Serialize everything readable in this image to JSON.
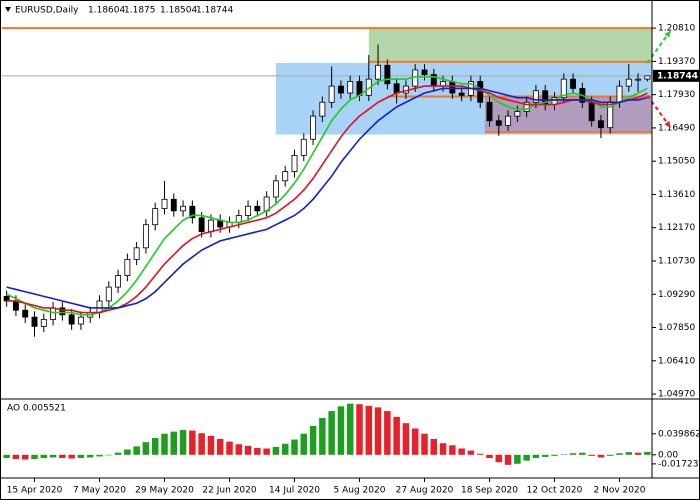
{
  "chart_data": [
    {
      "type": "candlestick",
      "title": "EURUSD,Daily",
      "categories": [
        null,
        null,
        null,
        "15 Apr 2020",
        null,
        null,
        null,
        null,
        null,
        null,
        "7 May 2020",
        null,
        null,
        null,
        null,
        null,
        null,
        "29 May 2020",
        null,
        null,
        null,
        null,
        null,
        null,
        "22 Jun 2020",
        null,
        null,
        null,
        null,
        null,
        null,
        "14 Jul 2020",
        null,
        null,
        null,
        null,
        null,
        null,
        "5 Aug 2020",
        null,
        null,
        null,
        null,
        null,
        null,
        "27 Aug 2020",
        null,
        null,
        null,
        null,
        null,
        null,
        "18 Sep 2020",
        null,
        null,
        null,
        null,
        null,
        null,
        "12 Oct 2020",
        null,
        null,
        null,
        null,
        null,
        null,
        "2 Nov 2020",
        null,
        null,
        null
      ],
      "candles": [
        [
          1.092,
          1.0945,
          1.0875,
          1.09
        ],
        [
          1.09,
          1.0925,
          1.0835,
          1.086
        ],
        [
          1.086,
          1.0885,
          1.0805,
          1.083
        ],
        [
          1.083,
          1.0855,
          1.0745,
          1.079
        ],
        [
          1.079,
          1.0845,
          1.0765,
          1.082
        ],
        [
          1.082,
          1.0895,
          1.0795,
          1.087
        ],
        [
          1.087,
          1.0895,
          1.0815,
          1.084
        ],
        [
          1.084,
          1.0865,
          1.0775,
          1.08
        ],
        [
          1.08,
          1.0855,
          1.0775,
          1.083
        ],
        [
          1.083,
          1.0875,
          1.0805,
          1.085
        ],
        [
          1.085,
          1.0925,
          1.0825,
          1.09
        ],
        [
          1.09,
          1.0985,
          1.0875,
          1.096
        ],
        [
          1.096,
          1.1035,
          1.0935,
          1.101
        ],
        [
          1.101,
          1.1105,
          1.0985,
          1.108
        ],
        [
          1.108,
          1.1155,
          1.1055,
          1.113
        ],
        [
          1.113,
          1.1255,
          1.1105,
          1.123
        ],
        [
          1.123,
          1.1325,
          1.1205,
          1.13
        ],
        [
          1.13,
          1.142,
          1.1275,
          1.134
        ],
        [
          1.134,
          1.1365,
          1.1265,
          1.129
        ],
        [
          1.129,
          1.1335,
          1.1265,
          1.131
        ],
        [
          1.131,
          1.1335,
          1.1235,
          1.126
        ],
        [
          1.126,
          1.1285,
          1.1175,
          1.12
        ],
        [
          1.12,
          1.1275,
          1.1175,
          1.125
        ],
        [
          1.125,
          1.1275,
          1.1195,
          1.122
        ],
        [
          1.122,
          1.1265,
          1.1195,
          1.124
        ],
        [
          1.124,
          1.1295,
          1.1215,
          1.127
        ],
        [
          1.127,
          1.1335,
          1.1245,
          1.131
        ],
        [
          1.131,
          1.1335,
          1.1265,
          1.129
        ],
        [
          1.129,
          1.1375,
          1.1265,
          1.135
        ],
        [
          1.135,
          1.1445,
          1.1325,
          1.142
        ],
        [
          1.142,
          1.1485,
          1.1395,
          1.146
        ],
        [
          1.146,
          1.1555,
          1.1435,
          1.153
        ],
        [
          1.153,
          1.1625,
          1.1505,
          1.16
        ],
        [
          1.16,
          1.1725,
          1.1575,
          1.17
        ],
        [
          1.17,
          1.1785,
          1.1675,
          1.176
        ],
        [
          1.176,
          1.1915,
          1.1735,
          1.183
        ],
        [
          1.183,
          1.1855,
          1.1775,
          1.18
        ],
        [
          1.18,
          1.1875,
          1.1775,
          1.185
        ],
        [
          1.185,
          1.1875,
          1.1765,
          1.179
        ],
        [
          1.179,
          1.1965,
          1.1765,
          1.186
        ],
        [
          1.186,
          1.201,
          1.1835,
          1.192
        ],
        [
          1.192,
          1.1945,
          1.1815,
          1.184
        ],
        [
          1.184,
          1.1865,
          1.1755,
          1.18
        ],
        [
          1.18,
          1.1855,
          1.1775,
          1.183
        ],
        [
          1.183,
          1.1925,
          1.1805,
          1.19
        ],
        [
          1.19,
          1.1925,
          1.1855,
          1.188
        ],
        [
          1.188,
          1.1905,
          1.1805,
          1.183
        ],
        [
          1.183,
          1.1875,
          1.1805,
          1.185
        ],
        [
          1.185,
          1.1875,
          1.1775,
          1.18
        ],
        [
          1.18,
          1.1825,
          1.1765,
          1.179
        ],
        [
          1.179,
          1.1875,
          1.1765,
          1.185
        ],
        [
          1.185,
          1.1875,
          1.1735,
          1.176
        ],
        [
          1.176,
          1.1785,
          1.1655,
          1.168
        ],
        [
          1.168,
          1.1705,
          1.1615,
          1.166
        ],
        [
          1.166,
          1.1725,
          1.1635,
          1.17
        ],
        [
          1.17,
          1.1745,
          1.1675,
          1.172
        ],
        [
          1.172,
          1.1785,
          1.1695,
          1.176
        ],
        [
          1.176,
          1.1835,
          1.1735,
          1.181
        ],
        [
          1.181,
          1.1835,
          1.1725,
          1.175
        ],
        [
          1.175,
          1.1805,
          1.1725,
          1.178
        ],
        [
          1.178,
          1.1885,
          1.1755,
          1.186
        ],
        [
          1.186,
          1.1885,
          1.1795,
          1.182
        ],
        [
          1.182,
          1.1845,
          1.1735,
          1.176
        ],
        [
          1.176,
          1.1785,
          1.1655,
          1.168
        ],
        [
          1.168,
          1.1705,
          1.1605,
          1.165
        ],
        [
          1.165,
          1.1785,
          1.1625,
          1.176
        ],
        [
          1.176,
          1.1855,
          1.1735,
          1.183
        ],
        [
          1.183,
          1.1925,
          1.1805,
          1.186
        ],
        [
          1.186,
          1.1885,
          1.1805,
          1.186
        ],
        [
          1.18604,
          1.1875,
          1.18504,
          1.18744
        ]
      ],
      "series": [
        {
          "color": "#1fcc1f",
          "values": [
            1.093,
            1.091,
            1.089,
            1.087,
            1.086,
            1.085,
            1.085,
            1.085,
            1.084,
            1.084,
            1.085,
            1.087,
            1.09,
            1.094,
            1.099,
            1.105,
            1.111,
            1.117,
            1.121,
            1.125,
            1.127,
            1.127,
            1.126,
            1.125,
            1.124,
            1.124,
            1.125,
            1.127,
            1.129,
            1.132,
            1.136,
            1.141,
            1.147,
            1.154,
            1.161,
            1.168,
            1.173,
            1.177,
            1.179,
            1.182,
            1.185,
            1.186,
            1.186,
            1.186,
            1.187,
            1.187,
            1.187,
            1.186,
            1.185,
            1.184,
            1.184,
            1.182,
            1.179,
            1.176,
            1.174,
            1.173,
            1.173,
            1.175,
            1.176,
            1.177,
            1.179,
            1.18,
            1.179,
            1.177,
            1.174,
            1.174,
            1.176,
            1.178,
            1.18,
            1.182
          ]
        },
        {
          "color": "#e01020",
          "values": [
            1.09,
            1.09,
            1.089,
            1.088,
            1.087,
            1.087,
            1.086,
            1.086,
            1.085,
            1.085,
            1.085,
            1.086,
            1.087,
            1.089,
            1.092,
            1.096,
            1.101,
            1.106,
            1.11,
            1.114,
            1.117,
            1.119,
            1.12,
            1.121,
            1.122,
            1.123,
            1.124,
            1.125,
            1.126,
            1.128,
            1.131,
            1.134,
            1.138,
            1.143,
            1.149,
            1.155,
            1.161,
            1.166,
            1.17,
            1.173,
            1.176,
            1.178,
            1.18,
            1.181,
            1.182,
            1.183,
            1.183,
            1.183,
            1.183,
            1.183,
            1.182,
            1.181,
            1.18,
            1.178,
            1.177,
            1.176,
            1.175,
            1.175,
            1.175,
            1.175,
            1.176,
            1.177,
            1.177,
            1.176,
            1.175,
            1.175,
            1.176,
            1.177,
            1.178,
            1.18
          ]
        },
        {
          "color": "#1020d0",
          "values": [
            1.096,
            1.095,
            1.094,
            1.093,
            1.092,
            1.091,
            1.09,
            1.089,
            1.088,
            1.087,
            1.087,
            1.087,
            1.087,
            1.088,
            1.089,
            1.091,
            1.094,
            1.098,
            1.102,
            1.106,
            1.109,
            1.112,
            1.114,
            1.116,
            1.117,
            1.118,
            1.119,
            1.12,
            1.121,
            1.123,
            1.125,
            1.127,
            1.13,
            1.134,
            1.139,
            1.144,
            1.15,
            1.155,
            1.16,
            1.164,
            1.168,
            1.171,
            1.174,
            1.176,
            1.178,
            1.18,
            1.181,
            1.182,
            1.182,
            1.182,
            1.182,
            1.182,
            1.181,
            1.18,
            1.179,
            1.178,
            1.178,
            1.177,
            1.177,
            1.177,
            1.177,
            1.177,
            1.177,
            1.177,
            1.176,
            1.176,
            1.176,
            1.177,
            1.177,
            1.178
          ]
        }
      ],
      "ylim": [
        1.048,
        1.2194
      ],
      "yticks": [
        {
          "value": 1.2081,
          "label": "1.20810"
        },
        {
          "value": 1.1937,
          "label": "1.19370"
        },
        {
          "value": 1.1793,
          "label": "1.17930"
        },
        {
          "value": 1.1649,
          "label": "1.16490"
        },
        {
          "value": 1.1505,
          "label": "1.15050"
        },
        {
          "value": 1.1361,
          "label": "1.13610"
        },
        {
          "value": 1.1217,
          "label": "1.12170"
        },
        {
          "value": 1.1073,
          "label": "1.10730"
        },
        {
          "value": 1.0929,
          "label": "1.09290"
        },
        {
          "value": 1.0785,
          "label": "1.07850"
        },
        {
          "value": 1.0641,
          "label": "1.06410"
        },
        {
          "value": 1.0497,
          "label": "1.04970"
        }
      ],
      "zones": [
        {
          "start": 29,
          "ylim": [
            1.162,
            1.193
          ],
          "color": "#a8d2f6"
        },
        {
          "start": 39,
          "ylim": [
            1.1935,
            1.2081
          ],
          "color": "#b3d6ab"
        },
        {
          "start": 51.5,
          "ylim": [
            1.163,
            1.1785
          ],
          "color": "rgba(190,90,120,0.45)"
        }
      ],
      "levels": [
        {
          "start": 0,
          "value": 1.2081
        },
        {
          "start": 39,
          "value": 1.1935
        },
        {
          "start": 41,
          "value": 1.1785
        },
        {
          "start": 51.5,
          "value": 1.163
        }
      ],
      "level_color": "#f07820",
      "arrows": [
        {
          "from": [
            69,
            1.193
          ],
          "to": [
            71.5,
            1.207
          ],
          "color": "#2ecc2e"
        },
        {
          "from": [
            69,
            1.179
          ],
          "to": [
            71.5,
            1.165
          ],
          "color": "#e8202a"
        }
      ]
    },
    {
      "type": "histogram-ao",
      "title": "AO 0.005521",
      "values": [
        -0.006,
        -0.008,
        -0.009,
        -0.008,
        -0.006,
        -0.005,
        -0.006,
        -0.007,
        -0.006,
        -0.005,
        -0.003,
        0.0,
        0.004,
        0.01,
        0.016,
        0.024,
        0.032,
        0.04,
        0.044,
        0.047,
        0.046,
        0.041,
        0.036,
        0.03,
        0.025,
        0.02,
        0.017,
        0.013,
        0.012,
        0.015,
        0.021,
        0.029,
        0.04,
        0.055,
        0.07,
        0.083,
        0.092,
        0.097,
        0.096,
        0.093,
        0.09,
        0.083,
        0.072,
        0.06,
        0.05,
        0.04,
        0.03,
        0.022,
        0.018,
        0.012,
        0.008,
        0.002,
        -0.006,
        -0.014,
        -0.019,
        -0.017,
        -0.011,
        -0.006,
        -0.004,
        -0.002,
        0.001,
        0.003,
        0.004,
        -0.002,
        -0.005,
        -0.002,
        0.003,
        0.005,
        0.004,
        0.005521
      ],
      "up_color": "#1e9e1e",
      "down_color": "#e8202a",
      "ylim": [
        -0.044,
        0.104
      ],
      "yticks": [
        0.039862,
        {
          "value": 0,
          "label": "0.00"
        },
        -0.017231
      ]
    }
  ]
}
